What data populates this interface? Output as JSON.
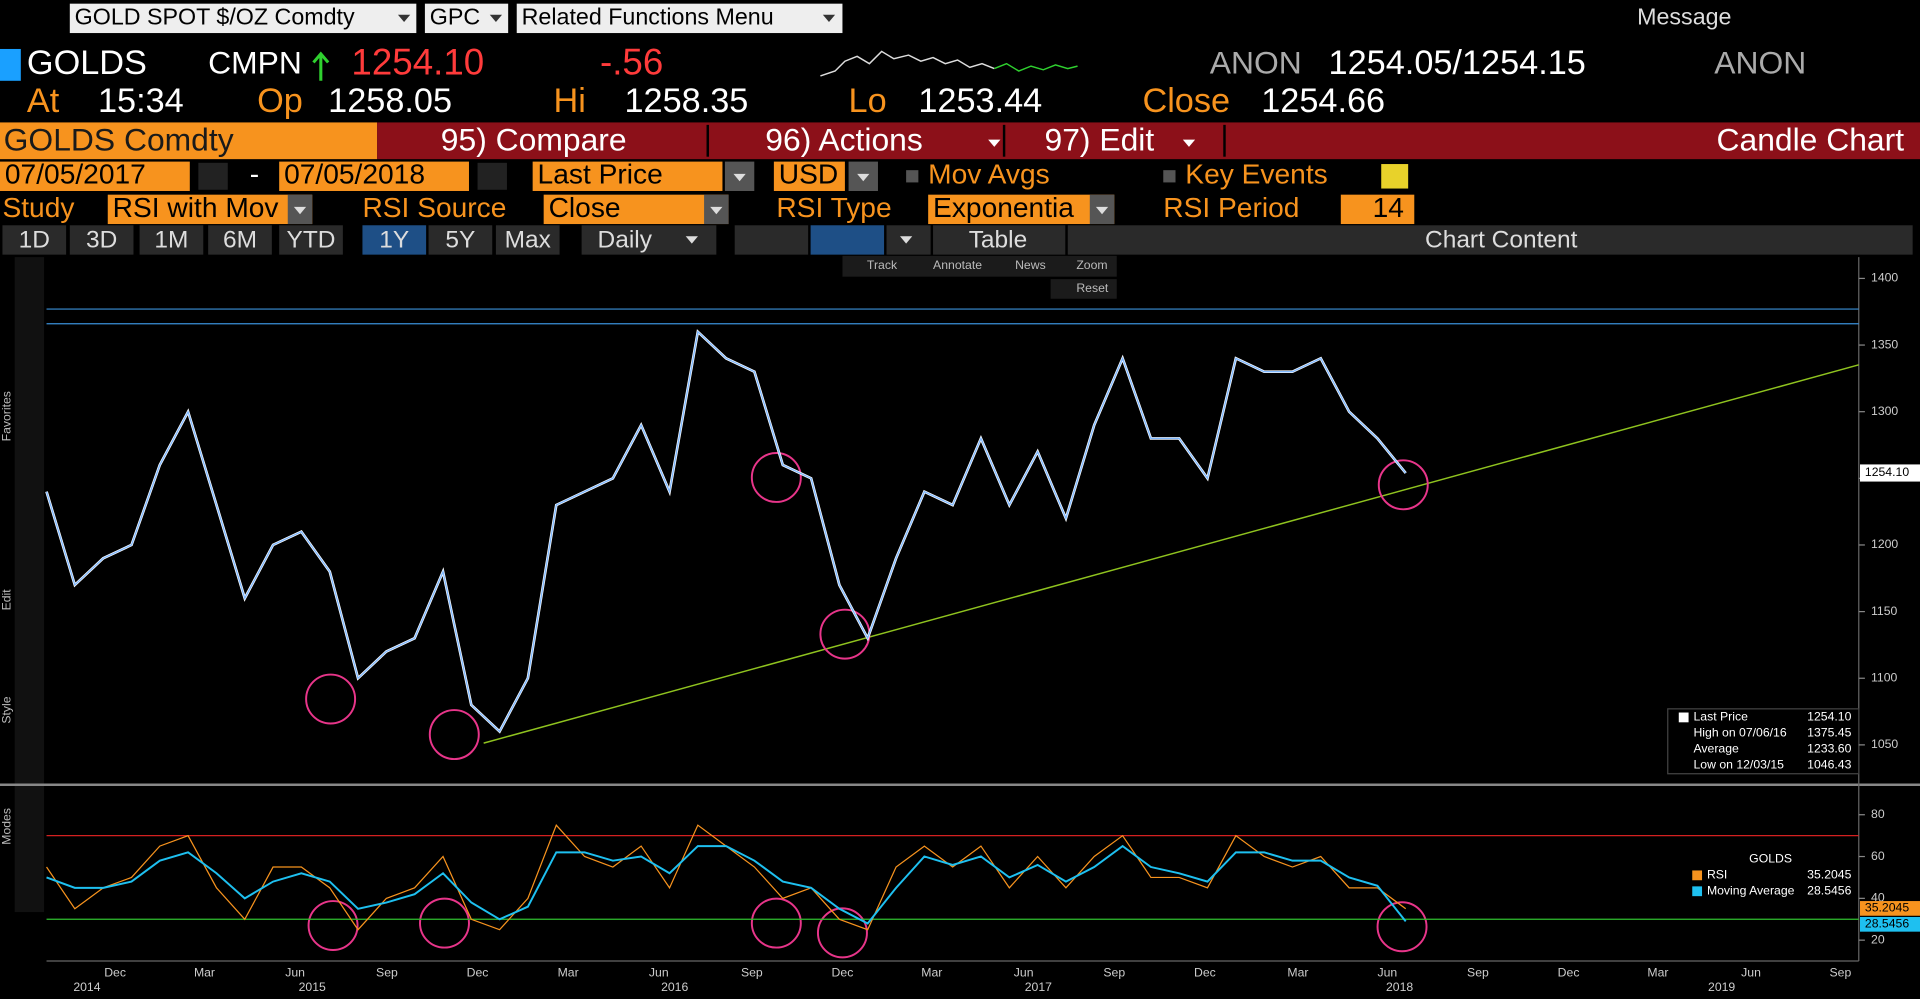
{
  "toolbar": {
    "security": "GOLD SPOT $/OZ Comdty",
    "function": "GPC",
    "menu": "Related Functions Menu",
    "message": "Message"
  },
  "quote": {
    "ticker": "GOLDS",
    "source": "CMPN",
    "last": "1254.10",
    "change": "-.56",
    "bid_source": "ANON",
    "bid_ask": "1254.05/1254.15",
    "ask_source": "ANON"
  },
  "ohlc": [
    {
      "label": "At",
      "value": "15:34"
    },
    {
      "label": "Op",
      "value": "1258.05"
    },
    {
      "label": "Hi",
      "value": "1258.35"
    },
    {
      "label": "Lo",
      "value": "1253.44"
    },
    {
      "label": "Close",
      "value": "1254.66"
    }
  ],
  "menu": {
    "security": "GOLDS Comdty",
    "items": [
      "95) Compare",
      "96) Actions",
      "97) Edit"
    ],
    "chart_type": "Candle Chart"
  },
  "settings": {
    "start": "07/05/2017",
    "separator": "-",
    "end": "07/05/2018",
    "field": "Last Price",
    "currency": "USD",
    "mov_avgs": "Mov Avgs",
    "key_events": "Key Events"
  },
  "study": [
    {
      "label": "Study",
      "value": "RSI with Mov"
    },
    {
      "label": "RSI Source",
      "value": "Close"
    },
    {
      "label": "RSI Type",
      "value": "Exponentia"
    },
    {
      "label": "RSI Period",
      "value": "14"
    }
  ],
  "periods": [
    "1D",
    "3D",
    "1M",
    "6M",
    "YTD",
    "1Y",
    "5Y",
    "Max"
  ],
  "selected_period": 5,
  "frequency": "Daily",
  "table": "Table",
  "chart_content": "Chart Content",
  "chart_tools": [
    "Track",
    "Annotate",
    "News",
    "Zoom"
  ],
  "reset": "Reset",
  "side_labels": [
    "Favorites",
    "Edit",
    "Style",
    "Modes"
  ],
  "x_axis": {
    "months": [
      "Dec",
      "Mar",
      "Jun",
      "Sep",
      "Dec",
      "Mar",
      "Jun",
      "Sep",
      "Dec",
      "Mar",
      "Jun",
      "Sep",
      "Dec",
      "Mar",
      "Jun",
      "Sep",
      "Dec",
      "Mar",
      "Jun",
      "Sep"
    ],
    "years": [
      "2014",
      "2015",
      "2016",
      "2017",
      "2018",
      "2019"
    ]
  },
  "chart_data": [
    {
      "type": "line",
      "color": "#7fb8ff",
      "values": [
        1240,
        1170,
        1190,
        1200,
        1260,
        1300,
        1230,
        1160,
        1200,
        1210,
        1180,
        1100,
        1120,
        1130,
        1180,
        1080,
        1060,
        1100,
        1230,
        1240,
        1250,
        1290,
        1240,
        1360,
        1340,
        1330,
        1260,
        1250,
        1170,
        1130,
        1190,
        1240,
        1230,
        1280,
        1230,
        1270,
        1220,
        1290,
        1340,
        1280,
        1280,
        1250,
        1340,
        1330,
        1330,
        1340,
        1300,
        1280,
        1254
      ],
      "ylim": [
        1021,
        1416
      ],
      "yticks": [
        1050,
        1100,
        1150,
        1200,
        1250,
        1300,
        1350,
        1400
      ],
      "levels": [
        1366,
        1377
      ],
      "last_label": "1254.10",
      "legend": [
        {
          "label": "Last Price",
          "value": "1254.10"
        },
        {
          "label": "High on 07/06/16",
          "value": "1375.45"
        },
        {
          "label": "Average",
          "value": "1233.60"
        },
        {
          "label": "Low on 12/03/15",
          "value": "1046.43"
        }
      ]
    },
    {
      "type": "line",
      "title": "GOLDS",
      "series": [
        {
          "name": "RSI",
          "color": "#f7931e",
          "value_label": "35.2045",
          "values": [
            55,
            35,
            45,
            50,
            65,
            70,
            45,
            30,
            55,
            55,
            45,
            25,
            40,
            45,
            60,
            30,
            25,
            40,
            75,
            60,
            55,
            65,
            45,
            75,
            65,
            55,
            40,
            45,
            30,
            25,
            55,
            65,
            55,
            65,
            45,
            60,
            45,
            60,
            70,
            50,
            50,
            45,
            70,
            60,
            55,
            60,
            45,
            45,
            35
          ]
        },
        {
          "name": "Moving Average",
          "color": "#1ec0f0",
          "value_label": "28.5456",
          "values": [
            50,
            45,
            45,
            48,
            58,
            62,
            52,
            40,
            48,
            52,
            48,
            35,
            38,
            42,
            52,
            38,
            30,
            36,
            62,
            62,
            58,
            60,
            52,
            65,
            65,
            58,
            48,
            45,
            35,
            28,
            45,
            60,
            56,
            60,
            50,
            56,
            48,
            55,
            65,
            55,
            52,
            48,
            62,
            62,
            58,
            58,
            50,
            46,
            29
          ]
        }
      ],
      "ylim": [
        10,
        92
      ],
      "yticks": [
        20,
        40,
        60,
        80
      ],
      "levels": [
        {
          "value": 70,
          "color": "#d42020"
        },
        {
          "value": 30,
          "color": "#2fbf2f"
        }
      ]
    }
  ]
}
